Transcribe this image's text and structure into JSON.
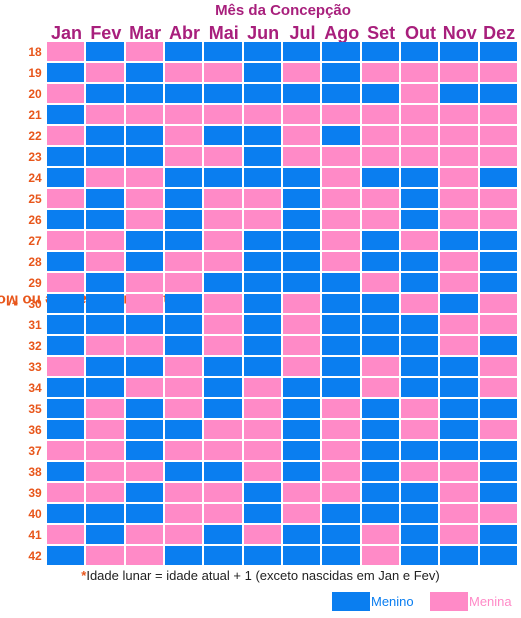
{
  "title": "Mês da Concepção",
  "ylabel": "Idade Lunar da Mãe no Momento da Concepção",
  "ylabel_star": "*",
  "months": [
    "Jan",
    "Fev",
    "Mar",
    "Abr",
    "Mai",
    "Jun",
    "Jul",
    "Ago",
    "Set",
    "Out",
    "Nov",
    "Dez"
  ],
  "ages": [
    "18",
    "19",
    "20",
    "21",
    "22",
    "23",
    "24",
    "25",
    "26",
    "27",
    "28",
    "29",
    "30",
    "31",
    "32",
    "33",
    "34",
    "35",
    "36",
    "37",
    "38",
    "39",
    "40",
    "41",
    "42"
  ],
  "grid": [
    "GBGBBBBBBBBB",
    "BGBGGBGBGGGG",
    "GBBBBBBBBGBB",
    "BGGGGGGGGGGG",
    "GBBGBBGBGGGG",
    "BBBGGBGGGGGG",
    "BGGBBBBGBBGB",
    "GBGBGGBGGBGG",
    "BBGBGGBGGBGG",
    "GGBBGBBGBGBB",
    "BGBGGBBGBBGB",
    "GBGGBBBBGBGB",
    "BBGBGBGBBGBG",
    "BBBBGBGBBBGG",
    "BGGBGBGBBBGB",
    "GBBGBBGBGBBG",
    "BBGGBGBBGBBG",
    "BGBGBGBGBGBB",
    "BGBBGGBGBGBG",
    "GGBGGGBGBBBB",
    "BGGBBGBGBGGB",
    "GGBGGBGGBBGB",
    "BBBGGBGBBBGG",
    "GBGGBGBBGBGB",
    "BGGBBBBBGBBB"
  ],
  "footnote": {
    "star": "*",
    "text": "Idade lunar = idade atual + 1 (exceto nascidas em Jan e Fev)"
  },
  "legend": {
    "boy_label": "Menino",
    "girl_label": "Menina"
  },
  "colors": {
    "boy": "#0a7ef0",
    "girl": "#ff8ac7",
    "title": "#a81f7c",
    "age_labels": "#e8561b"
  }
}
